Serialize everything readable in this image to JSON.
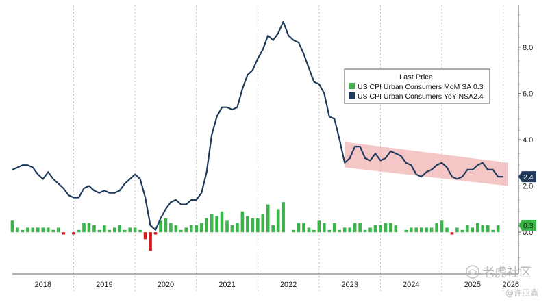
{
  "chart_data": {
    "type": "bar+line",
    "title": "",
    "xlabel": "",
    "ylabel": "",
    "x_range": [
      "2018-01",
      "2026-04"
    ],
    "ylim": [
      -1.8,
      9.8
    ],
    "y_ticks": [
      "0.0",
      "2.0",
      "4.0",
      "6.0",
      "8.0"
    ],
    "y_tick_values": [
      0,
      2,
      4,
      6,
      8
    ],
    "x_year_labels": [
      "2018",
      "2019",
      "2020",
      "2021",
      "2022",
      "2023",
      "2024",
      "2025",
      "2026"
    ],
    "grid": "vertical dotted at year boundaries",
    "legend": {
      "title": "Last Price",
      "placement": "right-middle",
      "entries": [
        {
          "label": "US CPI Urban Consumers MoM SA",
          "value": "0.3",
          "color": "#3cb44b"
        },
        {
          "label": "US CPI Urban Consumers YoY NSA",
          "value": "2.4",
          "color": "#1f3a5a"
        }
      ]
    },
    "last_value_tags": [
      {
        "series": "yoy",
        "text": "2.4",
        "value": 2.4,
        "color": "#1f3a5a"
      },
      {
        "series": "mom",
        "text": "0.3",
        "value": 0.3,
        "color": "#3cb44b"
      }
    ],
    "highlight_band": {
      "color": "#f2b3b3",
      "x_start": "2023-06",
      "x_end": "2026-02",
      "upper": [
        3.9,
        3.0
      ],
      "lower": [
        2.8,
        2.0
      ]
    },
    "series": [
      {
        "name": "US CPI Urban Consumers YoY NSA",
        "kind": "line",
        "color": "#1f3a5a",
        "start": "2018-01",
        "values": [
          2.7,
          2.8,
          2.9,
          2.9,
          2.8,
          2.5,
          2.3,
          2.6,
          2.3,
          2.1,
          1.9,
          1.6,
          1.5,
          1.5,
          1.9,
          2.0,
          1.8,
          1.7,
          1.8,
          1.7,
          1.7,
          1.8,
          2.1,
          2.3,
          2.5,
          2.3,
          1.5,
          0.3,
          0.1,
          0.6,
          1.0,
          1.3,
          1.4,
          1.2,
          1.2,
          1.4,
          1.4,
          1.7,
          2.6,
          4.2,
          5.0,
          5.4,
          5.4,
          5.3,
          5.4,
          6.2,
          6.8,
          7.0,
          7.5,
          7.9,
          8.5,
          8.3,
          8.6,
          9.1,
          8.5,
          8.3,
          8.2,
          7.7,
          7.1,
          6.5,
          6.4,
          6.0,
          5.0,
          4.9,
          4.0,
          3.0,
          3.2,
          3.7,
          3.7,
          3.2,
          3.1,
          3.4,
          3.1,
          3.2,
          3.5,
          3.4,
          3.3,
          3.0,
          2.9,
          2.5,
          2.4,
          2.6,
          2.7,
          2.9,
          3.0,
          2.8,
          2.4,
          2.3,
          2.4,
          2.7,
          2.7,
          2.9,
          3.0,
          2.7,
          2.7,
          2.4,
          2.4
        ]
      },
      {
        "name": "US CPI Urban Consumers MoM SA",
        "kind": "bar",
        "color": "#3cb44b",
        "negative_color": "#d7191c",
        "start": "2018-01",
        "values": [
          0.5,
          0.2,
          0.1,
          0.2,
          0.2,
          0.2,
          0.2,
          0.2,
          0.1,
          0.2,
          -0.1,
          0.0,
          -0.1,
          0.1,
          0.4,
          0.4,
          0.3,
          0.1,
          0.3,
          0.1,
          0.2,
          0.3,
          0.1,
          0.2,
          0.2,
          0.1,
          -0.3,
          -0.8,
          -0.1,
          0.5,
          0.6,
          0.4,
          0.3,
          0.1,
          0.2,
          0.3,
          0.3,
          0.4,
          0.6,
          0.8,
          0.7,
          0.9,
          0.5,
          0.3,
          0.4,
          0.9,
          0.7,
          0.6,
          0.6,
          0.8,
          1.2,
          0.3,
          1.0,
          1.3,
          0.0,
          0.1,
          0.4,
          0.4,
          0.2,
          0.1,
          0.5,
          0.4,
          0.1,
          0.4,
          0.1,
          0.2,
          0.2,
          0.4,
          0.4,
          0.1,
          0.2,
          0.3,
          0.3,
          0.4,
          0.4,
          0.3,
          0.0,
          0.1,
          0.2,
          0.2,
          0.2,
          0.2,
          0.2,
          0.4,
          0.5,
          0.2,
          -0.1,
          0.2,
          0.1,
          0.3,
          0.2,
          0.4,
          0.3,
          0.3,
          0.1,
          0.3
        ]
      }
    ]
  },
  "watermark": {
    "logo_text": "老虎社区",
    "author": "@许亚鑫"
  }
}
